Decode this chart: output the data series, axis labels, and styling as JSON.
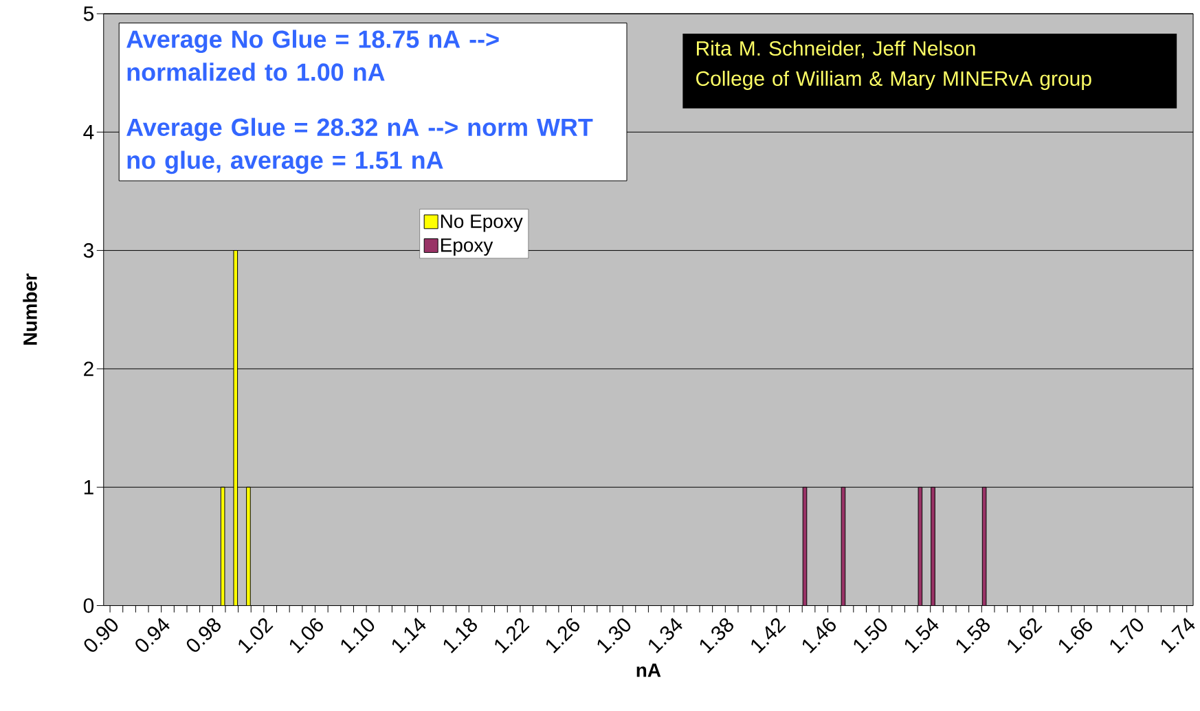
{
  "chart_data": {
    "type": "bar",
    "xlabel": "nA",
    "ylabel": "Number",
    "categories": [
      "0.90",
      null,
      null,
      null,
      "0.94",
      null,
      null,
      null,
      "0.98",
      null,
      null,
      null,
      "1.02",
      null,
      null,
      null,
      "1.06",
      null,
      null,
      null,
      "1.10",
      null,
      null,
      null,
      "1.14",
      null,
      null,
      null,
      "1.18",
      null,
      null,
      null,
      "1.22",
      null,
      null,
      null,
      "1.26",
      null,
      null,
      null,
      "1.30",
      null,
      null,
      null,
      "1.34",
      null,
      null,
      null,
      "1.38",
      null,
      null,
      null,
      "1.42",
      null,
      null,
      null,
      "1.46",
      null,
      null,
      null,
      "1.50",
      null,
      null,
      null,
      "1.54",
      null,
      null,
      null,
      "1.58",
      null,
      null,
      null,
      "1.62",
      null,
      null,
      null,
      "1.66",
      null,
      null,
      null,
      "1.70",
      null,
      null,
      null,
      "1.74"
    ],
    "series": [
      {
        "name": "No Epoxy",
        "color": "#ffff00",
        "values": [
          0,
          0,
          0,
          0,
          0,
          0,
          0,
          0,
          0,
          1,
          3,
          1,
          0,
          0,
          0,
          0,
          0,
          0,
          0,
          0,
          0,
          0,
          0,
          0,
          0,
          0,
          0,
          0,
          0,
          0,
          0,
          0,
          0,
          0,
          0,
          0,
          0,
          0,
          0,
          0,
          0,
          0,
          0,
          0,
          0,
          0,
          0,
          0,
          0,
          0,
          0,
          0,
          0,
          0,
          0,
          0,
          0,
          0,
          0,
          0,
          0,
          0,
          0,
          0,
          0,
          0,
          0,
          0,
          0,
          0,
          0,
          0,
          0,
          0,
          0,
          0,
          0,
          0,
          0,
          0,
          0,
          0,
          0,
          0,
          0
        ]
      },
      {
        "name": "Epoxy",
        "color": "#993366",
        "values": [
          0,
          0,
          0,
          0,
          0,
          0,
          0,
          0,
          0,
          0,
          0,
          0,
          0,
          0,
          0,
          0,
          0,
          0,
          0,
          0,
          0,
          0,
          0,
          0,
          0,
          0,
          0,
          0,
          0,
          0,
          0,
          0,
          0,
          0,
          0,
          0,
          0,
          0,
          0,
          0,
          0,
          0,
          0,
          0,
          0,
          0,
          0,
          0,
          0,
          0,
          0,
          0,
          0,
          0,
          1,
          0,
          0,
          1,
          0,
          0,
          0,
          0,
          0,
          1,
          1,
          0,
          0,
          0,
          1,
          0,
          0,
          0,
          0,
          0,
          0,
          0,
          0,
          0,
          0,
          0,
          0,
          0,
          0,
          0,
          0
        ]
      }
    ],
    "ylim": [
      0,
      5
    ],
    "yticks": [
      0,
      1,
      2,
      3,
      4,
      5
    ],
    "grid": "y",
    "legend": "top",
    "annotations": [
      "Average No Glue = 18.75 nA --> normalized to 1.00 nA",
      "Average Glue = 28.32 nA --> norm WRT no glue, average = 1.51 nA",
      "Rita M. Schneider, Jeff Nelson",
      "College of William & Mary MINERvA group"
    ]
  }
}
